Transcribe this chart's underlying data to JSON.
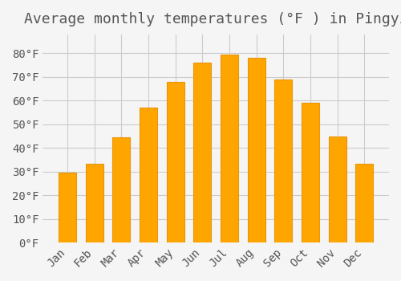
{
  "title": "Average monthly temperatures (°F ) in Pingyi",
  "months": [
    "Jan",
    "Feb",
    "Mar",
    "Apr",
    "May",
    "Jun",
    "Jul",
    "Aug",
    "Sep",
    "Oct",
    "Nov",
    "Dec"
  ],
  "values": [
    29.5,
    33.5,
    44.5,
    57.0,
    68.0,
    76.0,
    79.5,
    78.0,
    69.0,
    59.0,
    45.0,
    33.5
  ],
  "bar_color": "#FFA500",
  "bar_edge_color": "#E8960A",
  "background_color": "#F5F5F5",
  "grid_color": "#CCCCCC",
  "text_color": "#555555",
  "ylim": [
    0,
    88
  ],
  "yticks": [
    0,
    10,
    20,
    30,
    40,
    50,
    60,
    70,
    80
  ],
  "title_fontsize": 13,
  "tick_fontsize": 10
}
